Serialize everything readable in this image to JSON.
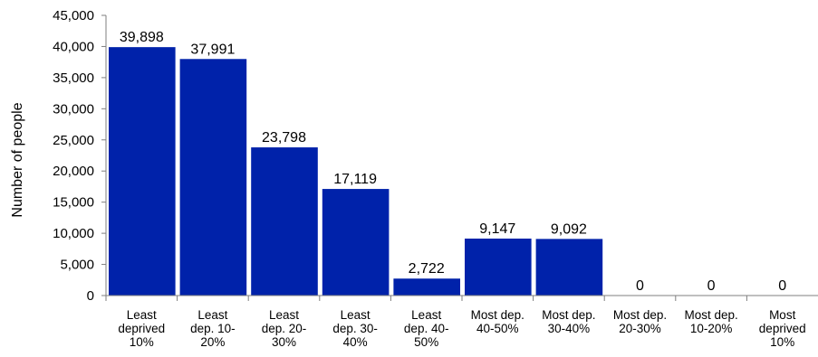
{
  "chart_data": {
    "type": "bar",
    "title": "",
    "xlabel": "",
    "ylabel": "Number of people",
    "ylim": [
      0,
      45000
    ],
    "yticks": [
      0,
      5000,
      10000,
      15000,
      20000,
      25000,
      30000,
      35000,
      40000,
      45000
    ],
    "ytick_labels": [
      "0",
      "5,000",
      "10,000",
      "15,000",
      "20,000",
      "25,000",
      "30,000",
      "35,000",
      "40,000",
      "45,000"
    ],
    "categories": [
      [
        "Least",
        "deprived",
        "10%"
      ],
      [
        "Least",
        "dep. 10-",
        "20%"
      ],
      [
        "Least",
        "dep. 20-",
        "30%"
      ],
      [
        "Least",
        "dep. 30-",
        "40%"
      ],
      [
        "Least",
        "dep. 40-",
        "50%"
      ],
      [
        "Most dep.",
        "40-50%"
      ],
      [
        "Most dep.",
        "30-40%"
      ],
      [
        "Most dep.",
        "20-30%"
      ],
      [
        "Most dep.",
        "10-20%"
      ],
      [
        "Most",
        "deprived",
        "10%"
      ]
    ],
    "values": [
      39898,
      37991,
      23798,
      17119,
      2722,
      9147,
      9092,
      0,
      0,
      0
    ],
    "data_labels": [
      "39,898",
      "37,991",
      "23,798",
      "17,119",
      "2,722",
      "9,147",
      "9,092",
      "0",
      "0",
      "0"
    ],
    "bar_color": "#0022aa",
    "grid": false,
    "legend": "none"
  }
}
